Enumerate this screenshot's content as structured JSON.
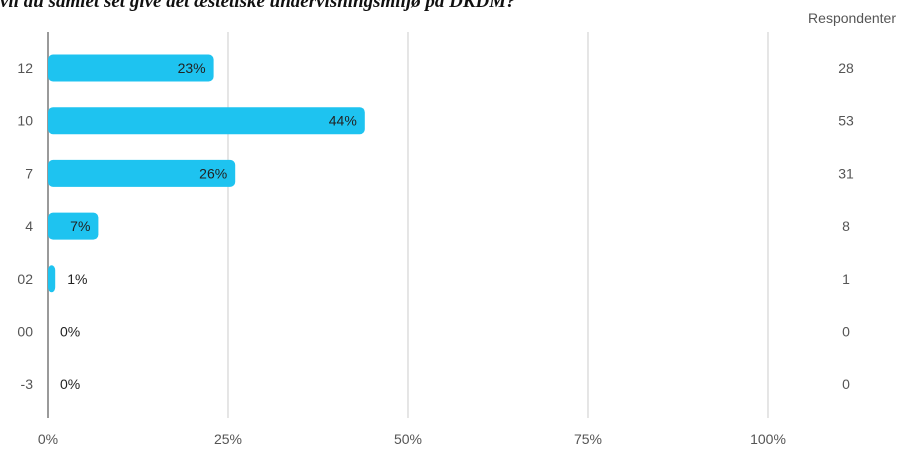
{
  "chart_data": {
    "type": "bar",
    "orientation": "horizontal",
    "title": "vil du samlet set give det æstetiske undervisningsmiljø på DKDM?",
    "categories": [
      "12",
      "10",
      "7",
      "4",
      "02",
      "00",
      "-3"
    ],
    "values": [
      23,
      44,
      26,
      7,
      1,
      0,
      0
    ],
    "value_labels": [
      "23%",
      "44%",
      "26%",
      "7%",
      "1%",
      "0%",
      "0%"
    ],
    "respondents": [
      28,
      53,
      31,
      8,
      1,
      0,
      0
    ],
    "respondents_header": "Respondenter",
    "x_ticks": [
      0,
      25,
      50,
      75,
      100
    ],
    "x_tick_labels": [
      "0%",
      "25%",
      "50%",
      "75%",
      "100%"
    ],
    "xlim": [
      0,
      100
    ],
    "grid": true,
    "bar_color": "#1ec3f0"
  }
}
